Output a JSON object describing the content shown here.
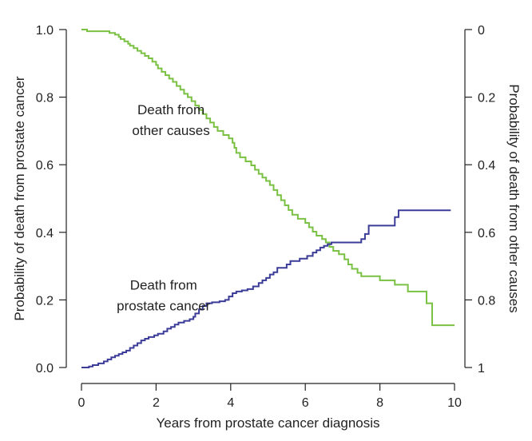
{
  "chart_data": {
    "type": "line",
    "step": true,
    "title": "",
    "xlabel": "Years from prostate cancer diagnosis",
    "ylabel_left": "Probability of death from prostate cancer",
    "ylabel_right": "Probability of death from other causes",
    "xlim": [
      0,
      10
    ],
    "ylim_left": [
      0,
      1
    ],
    "ylim_right": [
      1,
      0
    ],
    "right_axis_inverted": true,
    "grid": false,
    "legend": "none",
    "x_ticks": [
      "0",
      "2",
      "4",
      "6",
      "8",
      "10"
    ],
    "y_left_ticks": [
      "0.0",
      "0.2",
      "0.4",
      "0.6",
      "0.8",
      "1.0"
    ],
    "y_right_ticks": [
      "0",
      "0.2",
      "0.4",
      "0.6",
      "0.8",
      "1"
    ],
    "annotations": [
      {
        "id": "other",
        "lines": [
          "Death from",
          "other causes"
        ],
        "x": 2.4,
        "y": 0.75
      },
      {
        "id": "prostate",
        "lines": [
          "Death from",
          "prostate cancer"
        ],
        "x": 2.2,
        "y": 0.23
      }
    ],
    "series": [
      {
        "id": "other-causes",
        "axis": "left",
        "color": "#7ac143",
        "points": [
          [
            0.0,
            1.0
          ],
          [
            0.15,
            0.995
          ],
          [
            0.75,
            0.99
          ],
          [
            0.9,
            0.985
          ],
          [
            1.0,
            0.978
          ],
          [
            1.05,
            0.972
          ],
          [
            1.15,
            0.965
          ],
          [
            1.25,
            0.958
          ],
          [
            1.3,
            0.952
          ],
          [
            1.4,
            0.945
          ],
          [
            1.5,
            0.937
          ],
          [
            1.6,
            0.93
          ],
          [
            1.7,
            0.922
          ],
          [
            1.8,
            0.915
          ],
          [
            1.9,
            0.905
          ],
          [
            2.0,
            0.895
          ],
          [
            2.05,
            0.885
          ],
          [
            2.15,
            0.875
          ],
          [
            2.25,
            0.865
          ],
          [
            2.35,
            0.855
          ],
          [
            2.45,
            0.845
          ],
          [
            2.55,
            0.833
          ],
          [
            2.65,
            0.822
          ],
          [
            2.75,
            0.81
          ],
          [
            2.85,
            0.8
          ],
          [
            2.95,
            0.788
          ],
          [
            3.05,
            0.775
          ],
          [
            3.15,
            0.762
          ],
          [
            3.25,
            0.75
          ],
          [
            3.35,
            0.737
          ],
          [
            3.45,
            0.725
          ],
          [
            3.55,
            0.712
          ],
          [
            3.65,
            0.7
          ],
          [
            3.8,
            0.688
          ],
          [
            3.95,
            0.678
          ],
          [
            4.05,
            0.665
          ],
          [
            4.1,
            0.65
          ],
          [
            4.15,
            0.635
          ],
          [
            4.25,
            0.622
          ],
          [
            4.4,
            0.61
          ],
          [
            4.55,
            0.598
          ],
          [
            4.65,
            0.585
          ],
          [
            4.75,
            0.573
          ],
          [
            4.85,
            0.562
          ],
          [
            4.95,
            0.552
          ],
          [
            5.05,
            0.54
          ],
          [
            5.15,
            0.525
          ],
          [
            5.25,
            0.51
          ],
          [
            5.35,
            0.495
          ],
          [
            5.45,
            0.48
          ],
          [
            5.55,
            0.466
          ],
          [
            5.65,
            0.452
          ],
          [
            5.8,
            0.44
          ],
          [
            6.0,
            0.428
          ],
          [
            6.1,
            0.415
          ],
          [
            6.2,
            0.402
          ],
          [
            6.3,
            0.39
          ],
          [
            6.45,
            0.38
          ],
          [
            6.55,
            0.37
          ],
          [
            6.65,
            0.357
          ],
          [
            6.75,
            0.345
          ],
          [
            6.9,
            0.335
          ],
          [
            7.05,
            0.32
          ],
          [
            7.15,
            0.305
          ],
          [
            7.25,
            0.292
          ],
          [
            7.4,
            0.28
          ],
          [
            7.5,
            0.27
          ],
          [
            8.0,
            0.258
          ],
          [
            8.4,
            0.245
          ],
          [
            8.75,
            0.225
          ],
          [
            9.25,
            0.19
          ],
          [
            9.4,
            0.125
          ],
          [
            10.0,
            0.125
          ]
        ]
      },
      {
        "id": "prostate-cancer",
        "axis": "left",
        "color": "#3b3b98",
        "points": [
          [
            0.0,
            0.0
          ],
          [
            0.2,
            0.003
          ],
          [
            0.3,
            0.007
          ],
          [
            0.45,
            0.012
          ],
          [
            0.6,
            0.018
          ],
          [
            0.7,
            0.024
          ],
          [
            0.8,
            0.03
          ],
          [
            0.9,
            0.035
          ],
          [
            1.0,
            0.04
          ],
          [
            1.1,
            0.045
          ],
          [
            1.2,
            0.05
          ],
          [
            1.3,
            0.058
          ],
          [
            1.4,
            0.065
          ],
          [
            1.5,
            0.072
          ],
          [
            1.6,
            0.08
          ],
          [
            1.7,
            0.085
          ],
          [
            1.8,
            0.09
          ],
          [
            1.95,
            0.095
          ],
          [
            2.05,
            0.1
          ],
          [
            2.2,
            0.107
          ],
          [
            2.3,
            0.115
          ],
          [
            2.4,
            0.12
          ],
          [
            2.5,
            0.127
          ],
          [
            2.6,
            0.133
          ],
          [
            2.75,
            0.138
          ],
          [
            2.9,
            0.143
          ],
          [
            3.0,
            0.15
          ],
          [
            3.05,
            0.16
          ],
          [
            3.15,
            0.172
          ],
          [
            3.25,
            0.182
          ],
          [
            3.35,
            0.19
          ],
          [
            3.5,
            0.193
          ],
          [
            3.7,
            0.196
          ],
          [
            3.85,
            0.2
          ],
          [
            3.95,
            0.21
          ],
          [
            4.05,
            0.22
          ],
          [
            4.15,
            0.225
          ],
          [
            4.3,
            0.228
          ],
          [
            4.45,
            0.232
          ],
          [
            4.6,
            0.24
          ],
          [
            4.75,
            0.25
          ],
          [
            4.85,
            0.258
          ],
          [
            4.95,
            0.265
          ],
          [
            5.05,
            0.275
          ],
          [
            5.15,
            0.282
          ],
          [
            5.25,
            0.295
          ],
          [
            5.5,
            0.305
          ],
          [
            5.6,
            0.315
          ],
          [
            5.85,
            0.322
          ],
          [
            6.05,
            0.33
          ],
          [
            6.2,
            0.34
          ],
          [
            6.3,
            0.347
          ],
          [
            6.4,
            0.355
          ],
          [
            6.5,
            0.36
          ],
          [
            6.6,
            0.365
          ],
          [
            6.7,
            0.37
          ],
          [
            7.5,
            0.38
          ],
          [
            7.6,
            0.395
          ],
          [
            7.7,
            0.42
          ],
          [
            8.4,
            0.445
          ],
          [
            8.5,
            0.465
          ],
          [
            9.9,
            0.465
          ]
        ]
      }
    ]
  }
}
